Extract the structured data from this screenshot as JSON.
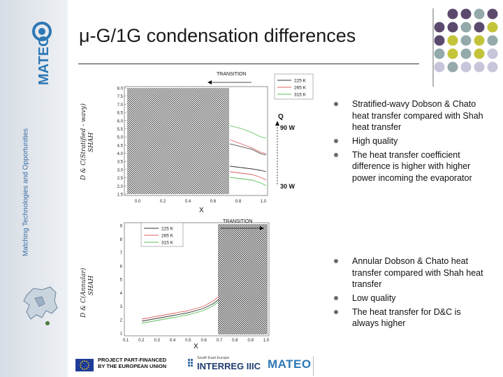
{
  "sidebar": {
    "logo_text": "MATEO",
    "tagline": "Matching Technologies and Opportunities"
  },
  "slide": {
    "title": "μ-G/1G condensation differences"
  },
  "chart_top": {
    "ylabel_line1": "D & C(Stratified - wavy)",
    "ylabel_line2": "SHAH",
    "xlabel": "X",
    "transition_label": "TRANSITION",
    "q_label": "Q",
    "q_high": "90 W",
    "q_low": "30 W",
    "x_ticks": [
      "0.0",
      "0.2",
      "0.4",
      "0.6",
      "0.8",
      "1.0"
    ],
    "y_ticks": [
      "8.0",
      "7.5",
      "7.0",
      "6.5",
      "6.0",
      "5.5",
      "5.0",
      "4.5",
      "4.0",
      "3.5",
      "3.0",
      "2.5",
      "2.0",
      "1.5"
    ],
    "legend": [
      "225 K",
      "265 K",
      "315 K"
    ]
  },
  "chart_bottom": {
    "ylabel_line1": "D & C(Annular)",
    "ylabel_line2": "SHAH",
    "xlabel": "X",
    "transition_label": "TRANSITION",
    "x_ticks": [
      "0.1",
      "0.2",
      "0.3",
      "0.4",
      "0.5",
      "0.6",
      "0.7",
      "0.8",
      "0.9",
      "1.0"
    ],
    "y_ticks": [
      "9",
      "8",
      "7",
      "6",
      "5",
      "4",
      "3",
      "2",
      "1"
    ],
    "legend": [
      "225 K",
      "265 K",
      "315 K"
    ]
  },
  "bullets_top": [
    "Stratified-wavy Dobson & Chato heat transfer compared with Shah heat transfer",
    "High quality",
    "The heat transfer coefficient difference is higher with higher power incoming the evaporator"
  ],
  "bullets_bottom": [
    "Annular Dobson & Chato heat transfer compared with Shah heat transfer",
    "Low quality",
    "The heat transfer for D&C is always higher"
  ],
  "footer": {
    "eu_line1": "PROJECT PART-FINANCED",
    "eu_line2": "BY THE EUROPEAN UNION",
    "interreg_small": "South East Europe",
    "interreg_main": "INTERREG IIIC",
    "mateo": "MATEO"
  },
  "colors": {
    "accent_blue": "#2e78b5",
    "dot_purple": "#5b4a6e",
    "dot_teal": "#94a9aa",
    "dot_olive": "#c4c43a",
    "dot_lavender": "#c7c5d9",
    "series_red": "#e06060",
    "series_green": "#5ac05a",
    "series_black": "#333333"
  }
}
